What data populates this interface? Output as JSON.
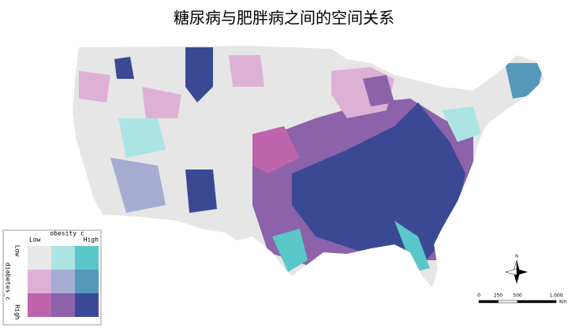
{
  "title": "糖尿病与肥胖病之间的空间关系",
  "legend": {
    "x_label": "obesity c",
    "x_low": "Low",
    "x_high": "High",
    "y_label": "diabetes_c",
    "y_low": "Low",
    "y_high": "High",
    "colors": [
      [
        "#e8e8e8",
        "#ace4e4",
        "#5ac8c8"
      ],
      [
        "#dfb0d6",
        "#a5add3",
        "#5698b9"
      ],
      [
        "#be64ac",
        "#8c62aa",
        "#3b4994"
      ]
    ]
  },
  "north_arrow": "N",
  "scale_bar": {
    "ticks": [
      0,
      250,
      500,
      {
        "value": 1000,
        "label": "1,000"
      }
    ],
    "unit": "Km"
  }
}
